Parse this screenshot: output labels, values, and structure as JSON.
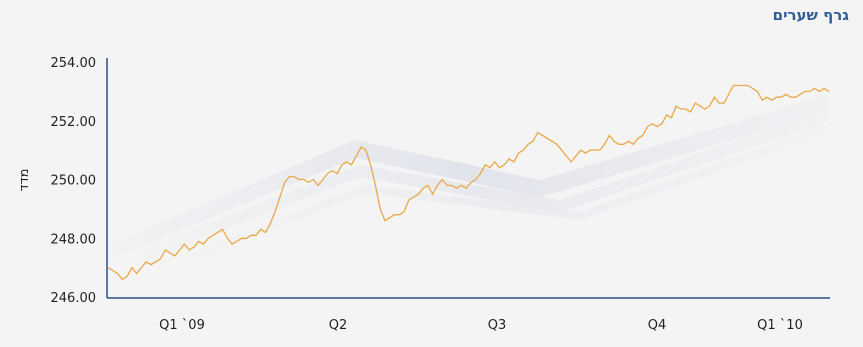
{
  "chart_data": {
    "type": "line",
    "title": "גרף שערים",
    "xlabel": "",
    "ylabel": "מדד",
    "ylim": [
      246,
      254
    ],
    "yticks": [
      "254.00",
      "252.00",
      "250.00",
      "248.00",
      "246.00"
    ],
    "xticks": [
      "Q1 `09",
      "Q2",
      "Q3",
      "Q4",
      "Q1 `10"
    ],
    "grid": false,
    "colors": {
      "line": "#e8a948",
      "axis": "#2d4e88"
    },
    "series": [
      {
        "values": [
          247.0,
          246.9,
          246.8,
          246.6,
          246.7,
          247.0,
          246.8,
          247.0,
          247.2,
          247.1,
          247.2,
          247.3,
          247.6,
          247.5,
          247.4,
          247.6,
          247.8,
          247.6,
          247.7,
          247.9,
          247.8,
          248.0,
          248.1,
          248.2,
          248.3,
          248.0,
          247.8,
          247.9,
          248.0,
          248.0,
          248.1,
          248.1,
          248.3,
          248.2,
          248.5,
          248.9,
          249.4,
          249.9,
          250.1,
          250.1,
          250.0,
          250.0,
          249.9,
          250.0,
          249.8,
          250.0,
          250.2,
          250.3,
          250.2,
          250.5,
          250.6,
          250.5,
          250.8,
          251.1,
          251.0,
          250.5,
          249.8,
          249.0,
          248.6,
          248.7,
          248.8,
          248.8,
          248.9,
          249.3,
          249.4,
          249.5,
          249.7,
          249.8,
          249.5,
          249.8,
          250.0,
          249.8,
          249.8,
          249.7,
          249.8,
          249.7,
          249.9,
          250.0,
          250.2,
          250.5,
          250.4,
          250.6,
          250.4,
          250.5,
          250.7,
          250.6,
          250.9,
          251.0,
          251.2,
          251.3,
          251.6,
          251.5,
          251.4,
          251.3,
          251.2,
          251.0,
          250.8,
          250.6,
          250.8,
          251.0,
          250.9,
          251.0,
          251.0,
          251.0,
          251.2,
          251.5,
          251.3,
          251.2,
          251.2,
          251.3,
          251.2,
          251.4,
          251.5,
          251.8,
          251.9,
          251.8,
          251.9,
          252.2,
          252.1,
          252.5,
          252.4,
          252.4,
          252.3,
          252.6,
          252.5,
          252.4,
          252.5,
          252.8,
          252.6,
          252.6,
          252.9,
          253.2,
          253.2,
          253.2,
          253.2,
          253.1,
          253.0,
          252.7,
          252.8,
          252.7,
          252.8,
          252.8,
          252.9,
          252.8,
          252.8,
          252.9,
          253.0,
          253.0,
          253.1,
          253.0,
          253.1,
          253.0
        ]
      }
    ]
  }
}
